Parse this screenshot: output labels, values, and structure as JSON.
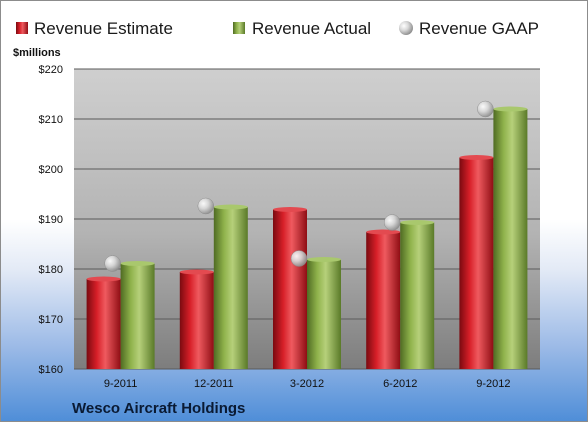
{
  "chart_data": {
    "type": "bar",
    "categories": [
      "9-2011",
      "12-2011",
      "3-2012",
      "6-2012",
      "9-2012"
    ],
    "series": [
      {
        "name": "Revenue Estimate",
        "type": "bar",
        "color": "#c8141e",
        "values": [
          178.0,
          179.4,
          191.9,
          187.4,
          202.3
        ]
      },
      {
        "name": "Revenue Actual",
        "type": "bar",
        "color": "#8db04a",
        "values": [
          181.1,
          192.4,
          181.9,
          189.3,
          212.0
        ]
      },
      {
        "name": "Revenue GAAP",
        "type": "marker",
        "color": "#c9c9c9",
        "values": [
          181.1,
          192.6,
          182.1,
          189.3,
          212.0
        ]
      }
    ],
    "ylim": [
      160,
      220
    ],
    "yticks": [
      160,
      170,
      180,
      190,
      200,
      210,
      220
    ],
    "ytick_labels": [
      "$160",
      "$170",
      "$180",
      "$190",
      "$200",
      "$210",
      "$220"
    ],
    "unit_label": "$millions",
    "legend_position": "top",
    "grid": true,
    "company": "Wesco Aircraft Holdings"
  }
}
